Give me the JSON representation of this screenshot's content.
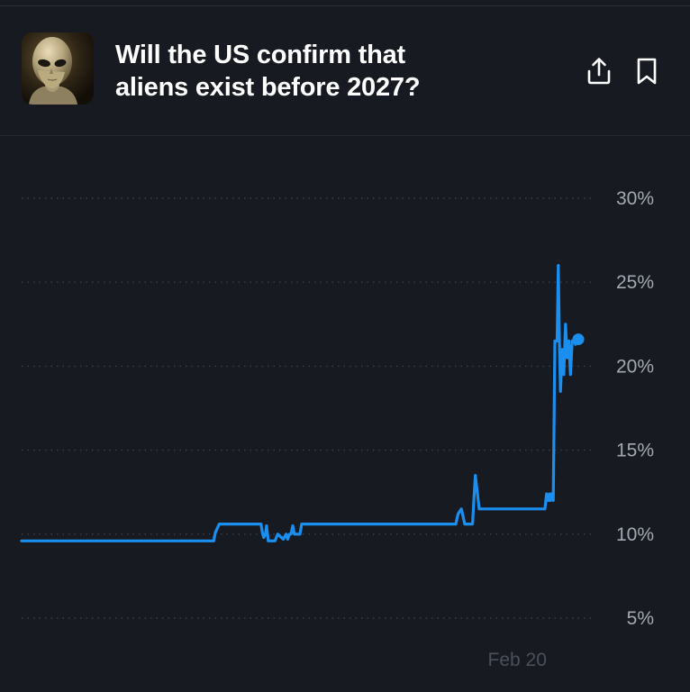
{
  "market": {
    "title_line1": "Will the US confirm that",
    "title_line2": "aliens exist before 2027?",
    "thumbnail": "alien-portrait"
  },
  "actions": {
    "share_icon": "share-icon",
    "bookmark_icon": "bookmark-icon"
  },
  "colors": {
    "background": "#171b21",
    "line": "#1a8ff0",
    "grid": "#3a3f48",
    "tick_label": "#a3a9b2",
    "date_label": "#4a505a"
  },
  "chart_data": {
    "type": "line",
    "title": "",
    "xlabel": "",
    "ylabel": "",
    "ylim": [
      3.5,
      30.5
    ],
    "yticks": [
      "30%",
      "25%",
      "20%",
      "15%",
      "10%",
      "5%"
    ],
    "ytick_values": [
      30,
      25,
      20,
      15,
      10,
      5
    ],
    "xticks": [
      "Feb 20"
    ],
    "xtick_positions": [
      0.9
    ],
    "grid": true,
    "legend": "none",
    "series": [
      {
        "x": [
          0,
          0.345,
          0.348,
          0.355,
          0.43,
          0.433,
          0.435,
          0.438,
          0.44,
          0.443,
          0.445,
          0.45,
          0.455,
          0.46,
          0.47,
          0.475,
          0.478,
          0.481,
          0.484,
          0.487,
          0.49,
          0.495,
          0.5,
          0.503,
          0.505,
          0.51,
          0.52,
          0.525,
          0.78,
          0.784,
          0.79,
          0.796,
          0.8,
          0.81,
          0.812,
          0.815,
          0.822,
          0.94,
          0.943,
          0.946,
          0.948,
          0.95,
          0.952,
          0.955,
          0.958,
          0.962,
          0.964,
          0.966,
          0.968,
          0.971,
          0.974,
          0.977,
          0.98,
          0.983,
          0.986,
          0.989,
          0.992,
          0.995,
          0.998,
          1.0
        ],
        "y": [
          9.6,
          9.6,
          10.1,
          10.6,
          10.6,
          10.0,
          9.8,
          10.0,
          10.5,
          9.6,
          9.6,
          9.6,
          9.6,
          10.0,
          9.7,
          10.0,
          9.7,
          10.0,
          10.0,
          10.5,
          10.0,
          10.0,
          10.0,
          10.6,
          10.6,
          10.6,
          10.6,
          10.6,
          10.6,
          11.2,
          11.5,
          10.6,
          10.6,
          10.6,
          11.8,
          13.5,
          11.5,
          11.5,
          12.4,
          12.0,
          12.4,
          12.0,
          12.4,
          12.0,
          21.5,
          21.5,
          26.0,
          21.5,
          18.5,
          21.0,
          19.5,
          22.5,
          20.5,
          21.5,
          19.5,
          21.5,
          21.5,
          21.3,
          21.5,
          21.6
        ]
      }
    ]
  }
}
